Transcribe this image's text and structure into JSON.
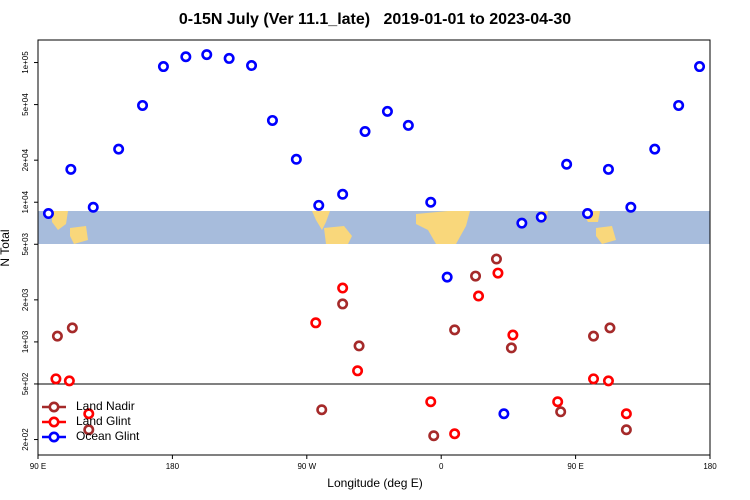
{
  "chart_data": {
    "type": "scatter",
    "title": "0-15N July (Ver 11.1_late)   2019-01-01 to 2023-04-30",
    "x_label": "Longitude (deg E)",
    "y_label": "N Total",
    "xlim": [
      90,
      540
    ],
    "xticks": [
      {
        "value": 90,
        "label": "90 E"
      },
      {
        "value": 180,
        "label": "180"
      },
      {
        "value": 270,
        "label": "90 W"
      },
      {
        "value": 360,
        "label": "0"
      },
      {
        "value": 450,
        "label": "90 E"
      },
      {
        "value": 540,
        "label": "180"
      }
    ],
    "ylim": [
      155,
      145000
    ],
    "log_y": true,
    "yticks": [
      {
        "value": 200,
        "label": "2e+02"
      },
      {
        "value": 500,
        "label": "5e+02"
      },
      {
        "value": 1000,
        "label": "1e+03"
      },
      {
        "value": 2000,
        "label": "2e+03"
      },
      {
        "value": 5000,
        "label": "5e+03"
      },
      {
        "value": 10000,
        "label": "1e+04"
      },
      {
        "value": 20000,
        "label": "2e+04"
      },
      {
        "value": 50000,
        "label": "5e+04"
      },
      {
        "value": 100000,
        "label": "1e+05"
      }
    ],
    "reference_line": 500,
    "legend": "bottom-left",
    "series": [
      {
        "name": "Land Nadir",
        "color": "#a52a2a",
        "x": [
          103,
          113,
          124,
          280,
          294,
          305,
          355,
          369,
          383,
          397,
          407,
          440,
          462,
          473,
          484
        ],
        "values": [
          1100,
          1260,
          235,
          327,
          1870,
          936,
          213,
          1220,
          2960,
          3920,
          906,
          316,
          1100,
          1260,
          235
        ]
      },
      {
        "name": "Land Glint",
        "color": "#ff0000",
        "x": [
          102,
          111,
          124,
          276,
          294,
          304,
          353,
          369,
          385,
          398,
          408,
          438,
          462,
          472,
          484
        ],
        "values": [
          544,
          526,
          306,
          1370,
          2430,
          621,
          373,
          220,
          2130,
          3110,
          1120,
          373,
          544,
          526,
          306
        ]
      },
      {
        "name": "Ocean Glint",
        "color": "#0000ff",
        "x": [
          97,
          112,
          127,
          144,
          160,
          174,
          189,
          203,
          218,
          233,
          247,
          263,
          278,
          294,
          309,
          324,
          338,
          353,
          364,
          402,
          414,
          427,
          444,
          458,
          472,
          487,
          503,
          519,
          533
        ],
        "values": [
          8300,
          17200,
          9200,
          24000,
          49300,
          93600,
          110000,
          114000,
          107000,
          95200,
          38500,
          20300,
          9500,
          11400,
          32100,
          44700,
          35500,
          10000,
          2910,
          306,
          7080,
          7820,
          18700,
          8300,
          17200,
          9200,
          24000,
          49300,
          93600
        ]
      }
    ]
  }
}
